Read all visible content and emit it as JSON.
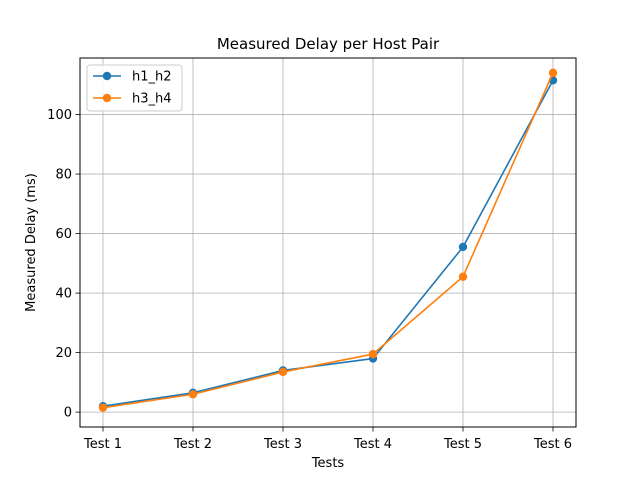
{
  "chart_data": {
    "type": "line",
    "title": "Measured Delay per Host Pair",
    "xlabel": "Tests",
    "ylabel": "Measured Delay (ms)",
    "categories": [
      "Test 1",
      "Test 2",
      "Test 3",
      "Test 4",
      "Test 5",
      "Test 6"
    ],
    "ylim": [
      -5,
      119
    ],
    "yticks": [
      0,
      20,
      40,
      60,
      80,
      100
    ],
    "grid": true,
    "legend_position": "top-left",
    "series": [
      {
        "name": "h1_h2",
        "color": "#1f77b4",
        "values": [
          2.0,
          6.5,
          14.0,
          18.0,
          55.5,
          111.5
        ]
      },
      {
        "name": "h3_h4",
        "color": "#ff7f0e",
        "values": [
          1.5,
          6.0,
          13.5,
          19.5,
          45.5,
          114.0
        ]
      }
    ]
  }
}
